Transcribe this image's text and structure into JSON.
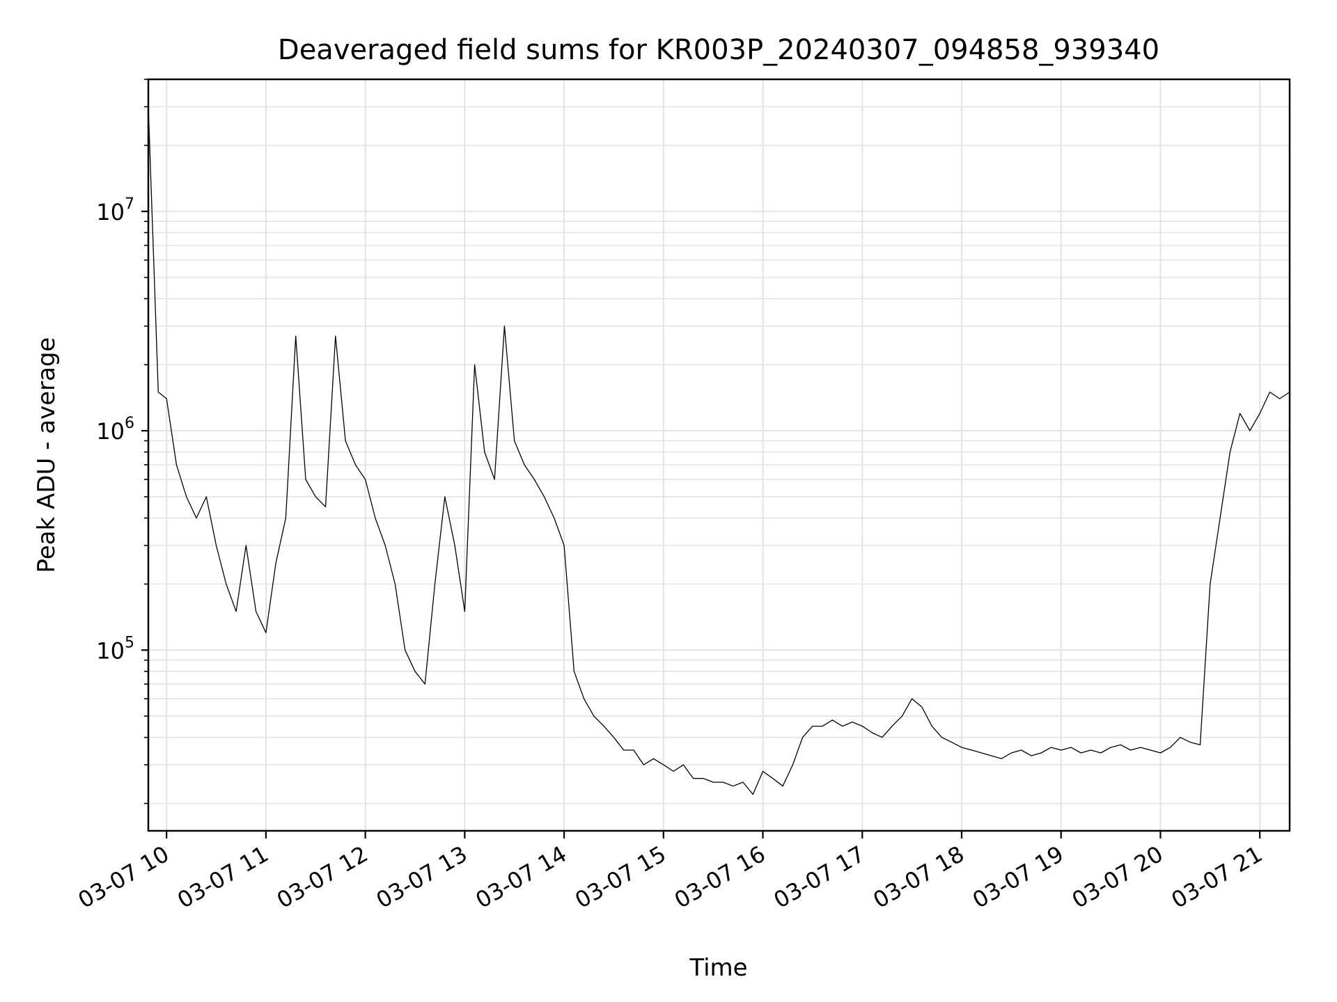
{
  "chart_data": {
    "type": "line",
    "title": "Deaveraged field sums for KR003P_20240307_094858_939340",
    "xlabel": "Time",
    "ylabel": "Peak ADU - average",
    "y_scale": "log",
    "ylim": [
      15000,
      40000000
    ],
    "xlim": [
      "2024-03-07 09:49",
      "2024-03-07 21:18"
    ],
    "grid": true,
    "legend": "none",
    "line_color": "#000000",
    "x_tick_labels": [
      "03-07 10",
      "03-07 11",
      "03-07 12",
      "03-07 13",
      "03-07 14",
      "03-07 15",
      "03-07 16",
      "03-07 17",
      "03-07 18",
      "03-07 19",
      "03-07 20",
      "03-07 21"
    ],
    "x_ticks": [
      "2024-03-07 10:00",
      "2024-03-07 11:00",
      "2024-03-07 12:00",
      "2024-03-07 13:00",
      "2024-03-07 14:00",
      "2024-03-07 15:00",
      "2024-03-07 16:00",
      "2024-03-07 17:00",
      "2024-03-07 18:00",
      "2024-03-07 19:00",
      "2024-03-07 20:00",
      "2024-03-07 21:00"
    ],
    "y_ticks": [
      {
        "value": 100000,
        "base": "10",
        "exp": "5"
      },
      {
        "value": 1000000,
        "base": "10",
        "exp": "6"
      },
      {
        "value": 10000000,
        "base": "10",
        "exp": "7"
      }
    ],
    "series": [
      {
        "x": [
          "2024-03-07 09:49",
          "2024-03-07 09:55",
          "2024-03-07 10:00",
          "2024-03-07 10:06",
          "2024-03-07 10:12",
          "2024-03-07 10:18",
          "2024-03-07 10:24",
          "2024-03-07 10:30",
          "2024-03-07 10:36",
          "2024-03-07 10:42",
          "2024-03-07 10:48",
          "2024-03-07 10:54",
          "2024-03-07 11:00",
          "2024-03-07 11:06",
          "2024-03-07 11:12",
          "2024-03-07 11:18",
          "2024-03-07 11:24",
          "2024-03-07 11:30",
          "2024-03-07 11:36",
          "2024-03-07 11:42",
          "2024-03-07 11:48",
          "2024-03-07 11:54",
          "2024-03-07 12:00",
          "2024-03-07 12:06",
          "2024-03-07 12:12",
          "2024-03-07 12:18",
          "2024-03-07 12:24",
          "2024-03-07 12:30",
          "2024-03-07 12:36",
          "2024-03-07 12:42",
          "2024-03-07 12:48",
          "2024-03-07 12:54",
          "2024-03-07 13:00",
          "2024-03-07 13:06",
          "2024-03-07 13:12",
          "2024-03-07 13:18",
          "2024-03-07 13:24",
          "2024-03-07 13:30",
          "2024-03-07 13:36",
          "2024-03-07 13:42",
          "2024-03-07 13:48",
          "2024-03-07 13:54",
          "2024-03-07 14:00",
          "2024-03-07 14:06",
          "2024-03-07 14:12",
          "2024-03-07 14:18",
          "2024-03-07 14:24",
          "2024-03-07 14:30",
          "2024-03-07 14:36",
          "2024-03-07 14:42",
          "2024-03-07 14:48",
          "2024-03-07 14:54",
          "2024-03-07 15:00",
          "2024-03-07 15:06",
          "2024-03-07 15:12",
          "2024-03-07 15:18",
          "2024-03-07 15:24",
          "2024-03-07 15:30",
          "2024-03-07 15:36",
          "2024-03-07 15:42",
          "2024-03-07 15:48",
          "2024-03-07 15:54",
          "2024-03-07 16:00",
          "2024-03-07 16:06",
          "2024-03-07 16:12",
          "2024-03-07 16:18",
          "2024-03-07 16:24",
          "2024-03-07 16:30",
          "2024-03-07 16:36",
          "2024-03-07 16:42",
          "2024-03-07 16:48",
          "2024-03-07 16:54",
          "2024-03-07 17:00",
          "2024-03-07 17:06",
          "2024-03-07 17:12",
          "2024-03-07 17:18",
          "2024-03-07 17:24",
          "2024-03-07 17:30",
          "2024-03-07 17:36",
          "2024-03-07 17:42",
          "2024-03-07 17:48",
          "2024-03-07 17:54",
          "2024-03-07 18:00",
          "2024-03-07 18:06",
          "2024-03-07 18:12",
          "2024-03-07 18:18",
          "2024-03-07 18:24",
          "2024-03-07 18:30",
          "2024-03-07 18:36",
          "2024-03-07 18:42",
          "2024-03-07 18:48",
          "2024-03-07 18:54",
          "2024-03-07 19:00",
          "2024-03-07 19:06",
          "2024-03-07 19:12",
          "2024-03-07 19:18",
          "2024-03-07 19:24",
          "2024-03-07 19:30",
          "2024-03-07 19:36",
          "2024-03-07 19:42",
          "2024-03-07 19:48",
          "2024-03-07 19:54",
          "2024-03-07 20:00",
          "2024-03-07 20:06",
          "2024-03-07 20:12",
          "2024-03-07 20:18",
          "2024-03-07 20:24",
          "2024-03-07 20:30",
          "2024-03-07 20:36",
          "2024-03-07 20:42",
          "2024-03-07 20:48",
          "2024-03-07 20:54",
          "2024-03-07 21:00",
          "2024-03-07 21:06",
          "2024-03-07 21:12",
          "2024-03-07 21:18"
        ],
        "y": [
          30000000,
          1500000,
          1400000,
          700000,
          500000,
          400000,
          500000,
          300000,
          200000,
          150000,
          300000,
          150000,
          120000,
          250000,
          400000,
          2700000,
          600000,
          500000,
          450000,
          2700000,
          900000,
          700000,
          600000,
          400000,
          300000,
          200000,
          100000,
          80000,
          70000,
          200000,
          500000,
          300000,
          150000,
          2000000,
          800000,
          600000,
          3000000,
          900000,
          700000,
          600000,
          500000,
          400000,
          300000,
          80000,
          60000,
          50000,
          45000,
          40000,
          35000,
          35000,
          30000,
          32000,
          30000,
          28000,
          30000,
          26000,
          26000,
          25000,
          25000,
          24000,
          25000,
          22000,
          28000,
          26000,
          24000,
          30000,
          40000,
          45000,
          45000,
          48000,
          45000,
          47000,
          45000,
          42000,
          40000,
          45000,
          50000,
          60000,
          55000,
          45000,
          40000,
          38000,
          36000,
          35000,
          34000,
          33000,
          32000,
          34000,
          35000,
          33000,
          34000,
          36000,
          35000,
          36000,
          34000,
          35000,
          34000,
          36000,
          37000,
          35000,
          36000,
          35000,
          34000,
          36000,
          40000,
          38000,
          37000,
          200000,
          400000,
          800000,
          1200000,
          1000000,
          1200000,
          1500000,
          1400000,
          1500000
        ]
      }
    ]
  }
}
